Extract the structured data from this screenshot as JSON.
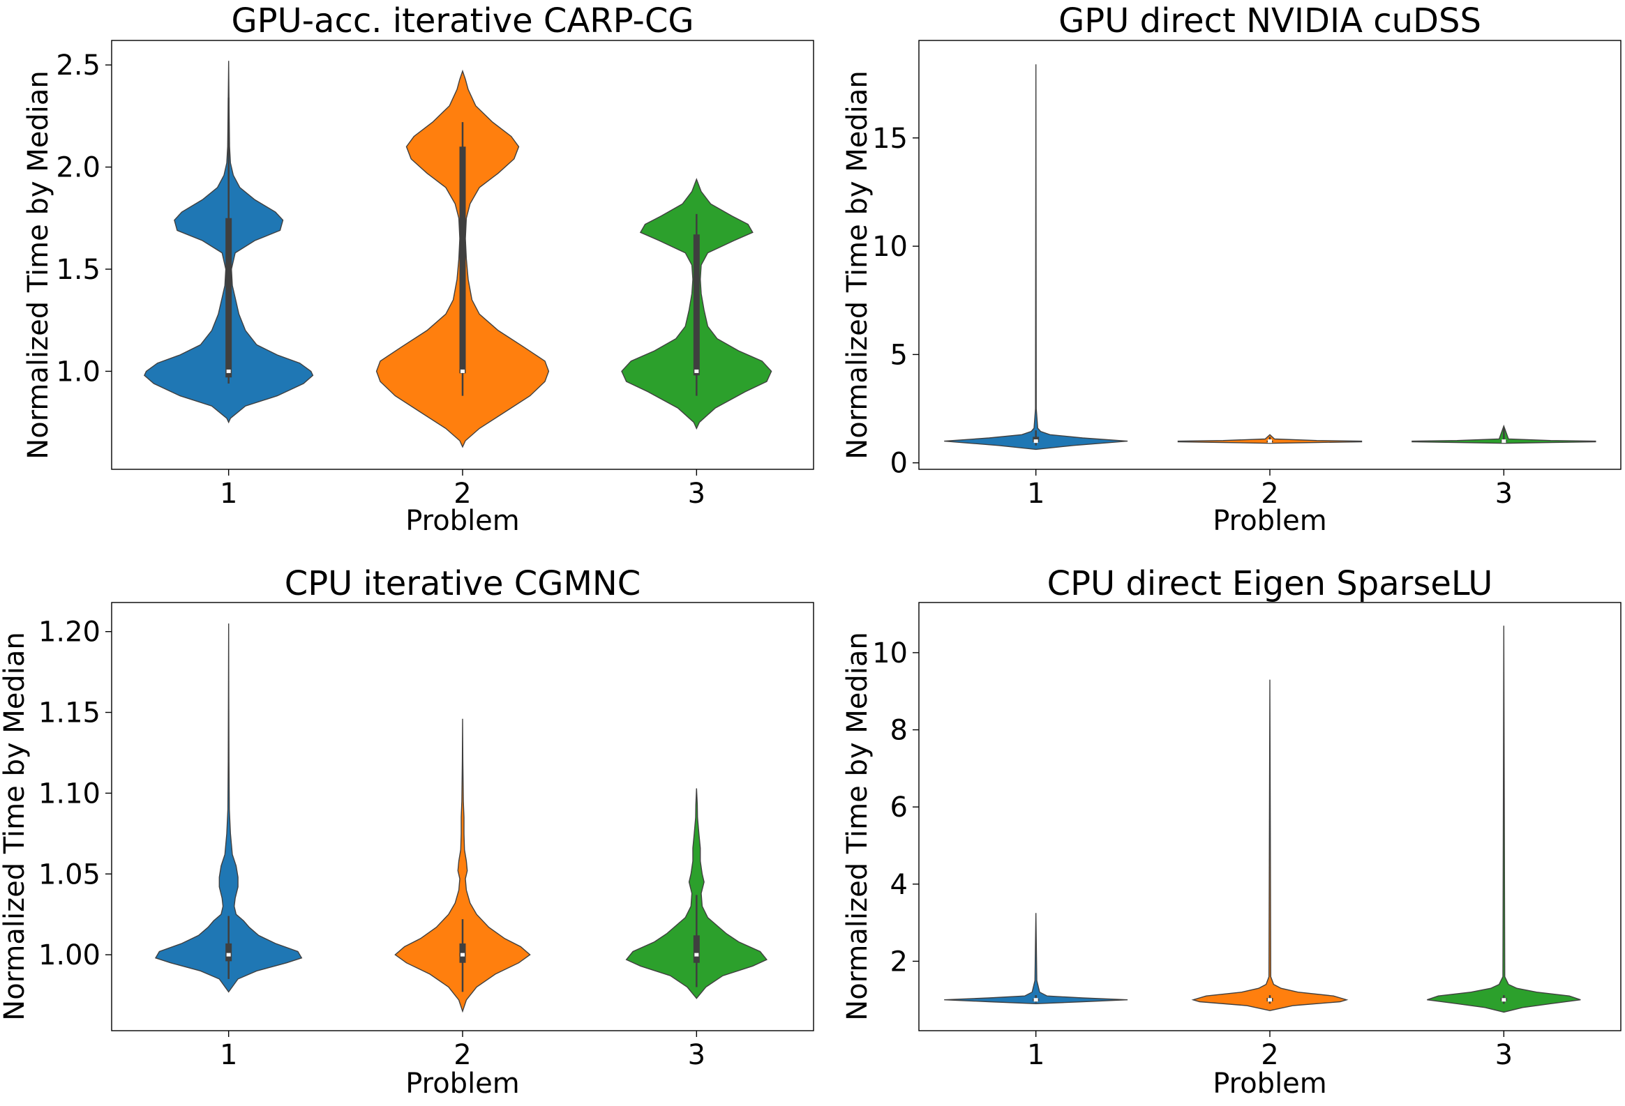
{
  "chart_data": [
    {
      "type": "violin",
      "title": "GPU-acc. iterative CARP-CG",
      "xlabel": "Problem",
      "ylabel": "Normalized Time by Median",
      "categories": [
        "1",
        "2",
        "3"
      ],
      "yticks": [
        "1.0",
        "1.5",
        "2.0",
        "2.5"
      ],
      "ylim": [
        0.52,
        2.62
      ],
      "colors": [
        "#1f77b4",
        "#ff7f0e",
        "#2ca02c"
      ],
      "violins": [
        {
          "category": "1",
          "color": "#1f77b4",
          "shape": [
            [
              0.75,
              0
            ],
            [
              0.77,
              0.02
            ],
            [
              0.83,
              0.18
            ],
            [
              0.88,
              0.52
            ],
            [
              0.94,
              0.8
            ],
            [
              0.98,
              0.9
            ],
            [
              1.0,
              0.88
            ],
            [
              1.04,
              0.76
            ],
            [
              1.08,
              0.52
            ],
            [
              1.13,
              0.3
            ],
            [
              1.2,
              0.18
            ],
            [
              1.28,
              0.11
            ],
            [
              1.36,
              0.07
            ],
            [
              1.42,
              0.04
            ],
            [
              1.5,
              0.03
            ],
            [
              1.58,
              0.07
            ],
            [
              1.64,
              0.28
            ],
            [
              1.69,
              0.55
            ],
            [
              1.74,
              0.58
            ],
            [
              1.78,
              0.5
            ],
            [
              1.84,
              0.28
            ],
            [
              1.9,
              0.12
            ],
            [
              1.96,
              0.05
            ],
            [
              2.02,
              0.02
            ],
            [
              2.1,
              0.01
            ],
            [
              2.3,
              0.005
            ],
            [
              2.52,
              0.0
            ]
          ],
          "box": {
            "q1": 0.97,
            "median": 1.0,
            "q3": 1.75,
            "wlo": 0.94,
            "whi": 2.34
          }
        },
        {
          "category": "2",
          "color": "#ff7f0e",
          "shape": [
            [
              0.63,
              0
            ],
            [
              0.66,
              0.03
            ],
            [
              0.72,
              0.18
            ],
            [
              0.8,
              0.45
            ],
            [
              0.88,
              0.72
            ],
            [
              0.95,
              0.88
            ],
            [
              1.0,
              0.92
            ],
            [
              1.05,
              0.88
            ],
            [
              1.12,
              0.65
            ],
            [
              1.2,
              0.38
            ],
            [
              1.28,
              0.18
            ],
            [
              1.35,
              0.1
            ],
            [
              1.45,
              0.06
            ],
            [
              1.55,
              0.04
            ],
            [
              1.65,
              0.03
            ],
            [
              1.75,
              0.04
            ],
            [
              1.82,
              0.08
            ],
            [
              1.9,
              0.18
            ],
            [
              1.97,
              0.38
            ],
            [
              2.04,
              0.55
            ],
            [
              2.1,
              0.6
            ],
            [
              2.15,
              0.52
            ],
            [
              2.22,
              0.32
            ],
            [
              2.3,
              0.14
            ],
            [
              2.38,
              0.06
            ],
            [
              2.43,
              0.03
            ],
            [
              2.47,
              0.0
            ]
          ],
          "box": {
            "q1": 0.99,
            "median": 1.0,
            "q3": 2.1,
            "wlo": 0.88,
            "whi": 2.22
          }
        },
        {
          "category": "3",
          "color": "#2ca02c",
          "shape": [
            [
              0.72,
              0
            ],
            [
              0.75,
              0.03
            ],
            [
              0.82,
              0.2
            ],
            [
              0.9,
              0.52
            ],
            [
              0.95,
              0.75
            ],
            [
              1.0,
              0.8
            ],
            [
              1.05,
              0.7
            ],
            [
              1.1,
              0.45
            ],
            [
              1.16,
              0.22
            ],
            [
              1.22,
              0.12
            ],
            [
              1.3,
              0.08
            ],
            [
              1.38,
              0.05
            ],
            [
              1.45,
              0.04
            ],
            [
              1.52,
              0.05
            ],
            [
              1.58,
              0.12
            ],
            [
              1.64,
              0.4
            ],
            [
              1.68,
              0.6
            ],
            [
              1.72,
              0.55
            ],
            [
              1.76,
              0.38
            ],
            [
              1.82,
              0.15
            ],
            [
              1.88,
              0.05
            ],
            [
              1.94,
              0.0
            ]
          ],
          "box": {
            "q1": 0.98,
            "median": 1.0,
            "q3": 1.67,
            "wlo": 0.88,
            "whi": 1.77
          }
        }
      ]
    },
    {
      "type": "violin",
      "title": "GPU direct NVIDIA cuDSS",
      "xlabel": "Problem",
      "ylabel": "Normalized Time by Median",
      "categories": [
        "1",
        "2",
        "3"
      ],
      "yticks": [
        "0",
        "5",
        "10",
        "15"
      ],
      "ylim": [
        -0.3,
        19.5
      ],
      "colors": [
        "#1f77b4",
        "#ff7f0e",
        "#2ca02c"
      ],
      "violins": [
        {
          "category": "1",
          "color": "#1f77b4",
          "shape": [
            [
              0.62,
              0
            ],
            [
              0.8,
              0.4
            ],
            [
              1.0,
              0.98
            ],
            [
              1.15,
              0.5
            ],
            [
              1.3,
              0.15
            ],
            [
              1.45,
              0.05
            ],
            [
              1.6,
              0.02
            ],
            [
              2.5,
              0.004
            ],
            [
              18.4,
              0.0
            ]
          ],
          "box": {
            "q1": 0.95,
            "median": 1.0,
            "q3": 1.2,
            "wlo": 0.8,
            "whi": 1.5
          }
        },
        {
          "category": "2",
          "color": "#ff7f0e",
          "shape": [
            [
              0.9,
              0
            ],
            [
              0.94,
              0.5
            ],
            [
              0.97,
              0.98
            ],
            [
              1.0,
              0.98
            ],
            [
              1.03,
              0.5
            ],
            [
              1.1,
              0.05
            ],
            [
              1.3,
              0.0
            ]
          ],
          "box": {
            "q1": 0.98,
            "median": 1.0,
            "q3": 1.02,
            "wlo": 0.95,
            "whi": 1.2
          }
        },
        {
          "category": "3",
          "color": "#2ca02c",
          "shape": [
            [
              0.9,
              0
            ],
            [
              0.94,
              0.5
            ],
            [
              0.97,
              0.98
            ],
            [
              1.0,
              0.98
            ],
            [
              1.03,
              0.5
            ],
            [
              1.1,
              0.05
            ],
            [
              1.7,
              0.0
            ]
          ],
          "box": {
            "q1": 0.97,
            "median": 1.0,
            "q3": 1.05,
            "wlo": 0.93,
            "whi": 1.6
          }
        }
      ]
    },
    {
      "type": "violin",
      "title": "CPU iterative CGMNC",
      "xlabel": "Problem",
      "ylabel": "Normalized Time by Median",
      "categories": [
        "1",
        "2",
        "3"
      ],
      "yticks": [
        "1.00",
        "1.05",
        "1.10",
        "1.15",
        "1.20"
      ],
      "ylim": [
        0.953,
        1.218
      ],
      "colors": [
        "#1f77b4",
        "#ff7f0e",
        "#2ca02c"
      ],
      "violins": [
        {
          "category": "1",
          "color": "#1f77b4",
          "shape": [
            [
              0.977,
              0
            ],
            [
              0.985,
              0.1
            ],
            [
              0.99,
              0.3
            ],
            [
              0.995,
              0.62
            ],
            [
              0.998,
              0.78
            ],
            [
              1.002,
              0.74
            ],
            [
              1.007,
              0.5
            ],
            [
              1.012,
              0.32
            ],
            [
              1.017,
              0.22
            ],
            [
              1.021,
              0.16
            ],
            [
              1.025,
              0.08
            ],
            [
              1.03,
              0.06
            ],
            [
              1.035,
              0.07
            ],
            [
              1.042,
              0.1
            ],
            [
              1.048,
              0.1
            ],
            [
              1.055,
              0.08
            ],
            [
              1.062,
              0.04
            ],
            [
              1.075,
              0.02
            ],
            [
              1.09,
              0.008
            ],
            [
              1.12,
              0.004
            ],
            [
              1.16,
              0.002
            ],
            [
              1.205,
              0.0
            ]
          ],
          "box": {
            "q1": 0.996,
            "median": 1.0,
            "q3": 1.007,
            "wlo": 0.985,
            "whi": 1.024
          }
        },
        {
          "category": "2",
          "color": "#ff7f0e",
          "shape": [
            [
              0.965,
              0
            ],
            [
              0.972,
              0.04
            ],
            [
              0.98,
              0.15
            ],
            [
              0.988,
              0.35
            ],
            [
              0.995,
              0.6
            ],
            [
              1.0,
              0.72
            ],
            [
              1.005,
              0.62
            ],
            [
              1.01,
              0.45
            ],
            [
              1.017,
              0.28
            ],
            [
              1.025,
              0.15
            ],
            [
              1.032,
              0.08
            ],
            [
              1.04,
              0.04
            ],
            [
              1.047,
              0.03
            ],
            [
              1.052,
              0.05
            ],
            [
              1.058,
              0.04
            ],
            [
              1.065,
              0.02
            ],
            [
              1.075,
              0.015
            ],
            [
              1.085,
              0.015
            ],
            [
              1.095,
              0.008
            ],
            [
              1.12,
              0.003
            ],
            [
              1.146,
              0.0
            ]
          ],
          "box": {
            "q1": 0.995,
            "median": 1.0,
            "q3": 1.007,
            "wlo": 0.977,
            "whi": 1.022
          }
        },
        {
          "category": "3",
          "color": "#2ca02c",
          "shape": [
            [
              0.973,
              0
            ],
            [
              0.98,
              0.1
            ],
            [
              0.987,
              0.28
            ],
            [
              0.993,
              0.6
            ],
            [
              0.997,
              0.75
            ],
            [
              1.002,
              0.68
            ],
            [
              1.008,
              0.45
            ],
            [
              1.013,
              0.32
            ],
            [
              1.018,
              0.22
            ],
            [
              1.023,
              0.12
            ],
            [
              1.03,
              0.06
            ],
            [
              1.038,
              0.05
            ],
            [
              1.045,
              0.08
            ],
            [
              1.05,
              0.06
            ],
            [
              1.058,
              0.04
            ],
            [
              1.066,
              0.04
            ],
            [
              1.075,
              0.025
            ],
            [
              1.085,
              0.01
            ],
            [
              1.093,
              0.008
            ],
            [
              1.103,
              0.0
            ]
          ],
          "box": {
            "q1": 0.995,
            "median": 1.0,
            "q3": 1.012,
            "wlo": 0.98,
            "whi": 1.037
          }
        }
      ]
    },
    {
      "type": "violin",
      "title": "CPU direct Eigen SparseLU",
      "xlabel": "Problem",
      "ylabel": "Normalized Time by Median",
      "categories": [
        "1",
        "2",
        "3"
      ],
      "yticks": [
        "2",
        "4",
        "6",
        "8",
        "10"
      ],
      "ylim": [
        0.2,
        11.3
      ],
      "colors": [
        "#1f77b4",
        "#ff7f0e",
        "#2ca02c"
      ],
      "violins": [
        {
          "category": "1",
          "color": "#1f77b4",
          "shape": [
            [
              0.9,
              0
            ],
            [
              0.95,
              0.5
            ],
            [
              1.0,
              0.98
            ],
            [
              1.05,
              0.5
            ],
            [
              1.1,
              0.12
            ],
            [
              1.2,
              0.04
            ],
            [
              1.5,
              0.01
            ],
            [
              3.25,
              0.0
            ]
          ],
          "box": {
            "q1": 0.97,
            "median": 1.0,
            "q3": 1.03,
            "wlo": 0.93,
            "whi": 1.12
          }
        },
        {
          "category": "2",
          "color": "#ff7f0e",
          "shape": [
            [
              0.72,
              0
            ],
            [
              0.85,
              0.25
            ],
            [
              0.95,
              0.75
            ],
            [
              1.0,
              0.82
            ],
            [
              1.1,
              0.68
            ],
            [
              1.2,
              0.3
            ],
            [
              1.3,
              0.12
            ],
            [
              1.4,
              0.04
            ],
            [
              1.6,
              0.01
            ],
            [
              9.3,
              0.0
            ]
          ],
          "box": {
            "q1": 0.96,
            "median": 1.0,
            "q3": 1.05,
            "wlo": 0.9,
            "whi": 1.12
          }
        },
        {
          "category": "3",
          "color": "#2ca02c",
          "shape": [
            [
              0.68,
              0
            ],
            [
              0.8,
              0.2
            ],
            [
              0.9,
              0.5
            ],
            [
              1.0,
              0.82
            ],
            [
              1.1,
              0.7
            ],
            [
              1.2,
              0.35
            ],
            [
              1.3,
              0.14
            ],
            [
              1.4,
              0.05
            ],
            [
              1.6,
              0.01
            ],
            [
              10.7,
              0.0
            ]
          ],
          "box": {
            "q1": 0.97,
            "median": 1.0,
            "q3": 1.05,
            "wlo": 0.9,
            "whi": 1.12
          }
        }
      ]
    }
  ]
}
